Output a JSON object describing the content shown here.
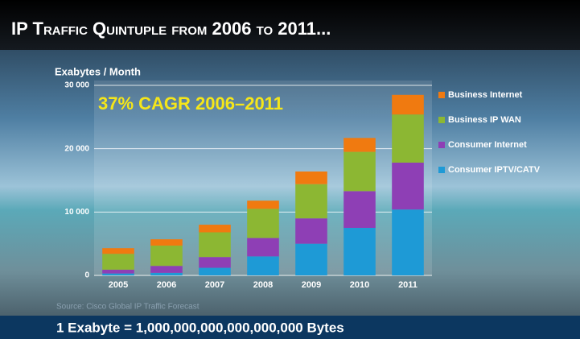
{
  "chart_data": {
    "type": "stacked-bar",
    "title": "IP Traffic Quintuple from 2006 to 2011...",
    "ylabel": "Exabytes / Month",
    "annotation": "37% CAGR 2006–2011",
    "source": "Source: Cisco Global IP Traffic Forecast",
    "footnote": "1 Exabyte = 1,000,000,000,000,000,000 Bytes",
    "categories": [
      "2005",
      "2006",
      "2007",
      "2008",
      "2009",
      "2010",
      "2011"
    ],
    "series": [
      {
        "name": "Consumer IPTV/CATV",
        "color": "#1e9ad6",
        "values": [
          300,
          400,
          1200,
          3000,
          5000,
          7500,
          10400
        ]
      },
      {
        "name": "Consumer Internet",
        "color": "#8e3fb5",
        "values": [
          600,
          1100,
          1700,
          2900,
          4000,
          5800,
          7400
        ]
      },
      {
        "name": "Business IP WAN",
        "color": "#8cb733",
        "values": [
          2500,
          3200,
          3900,
          4600,
          5400,
          6200,
          7600
        ]
      },
      {
        "name": "Business Internet",
        "color": "#f07a10",
        "values": [
          900,
          1000,
          1200,
          1300,
          2000,
          2200,
          3100
        ]
      }
    ],
    "ylim": [
      0,
      30000
    ],
    "yticks": [
      0,
      {
        "value": 10000,
        "label": "10 000"
      },
      {
        "value": 20000,
        "label": "20 000"
      },
      {
        "value": 30000,
        "label": "30 000"
      }
    ],
    "grid": true,
    "legend": "right"
  }
}
